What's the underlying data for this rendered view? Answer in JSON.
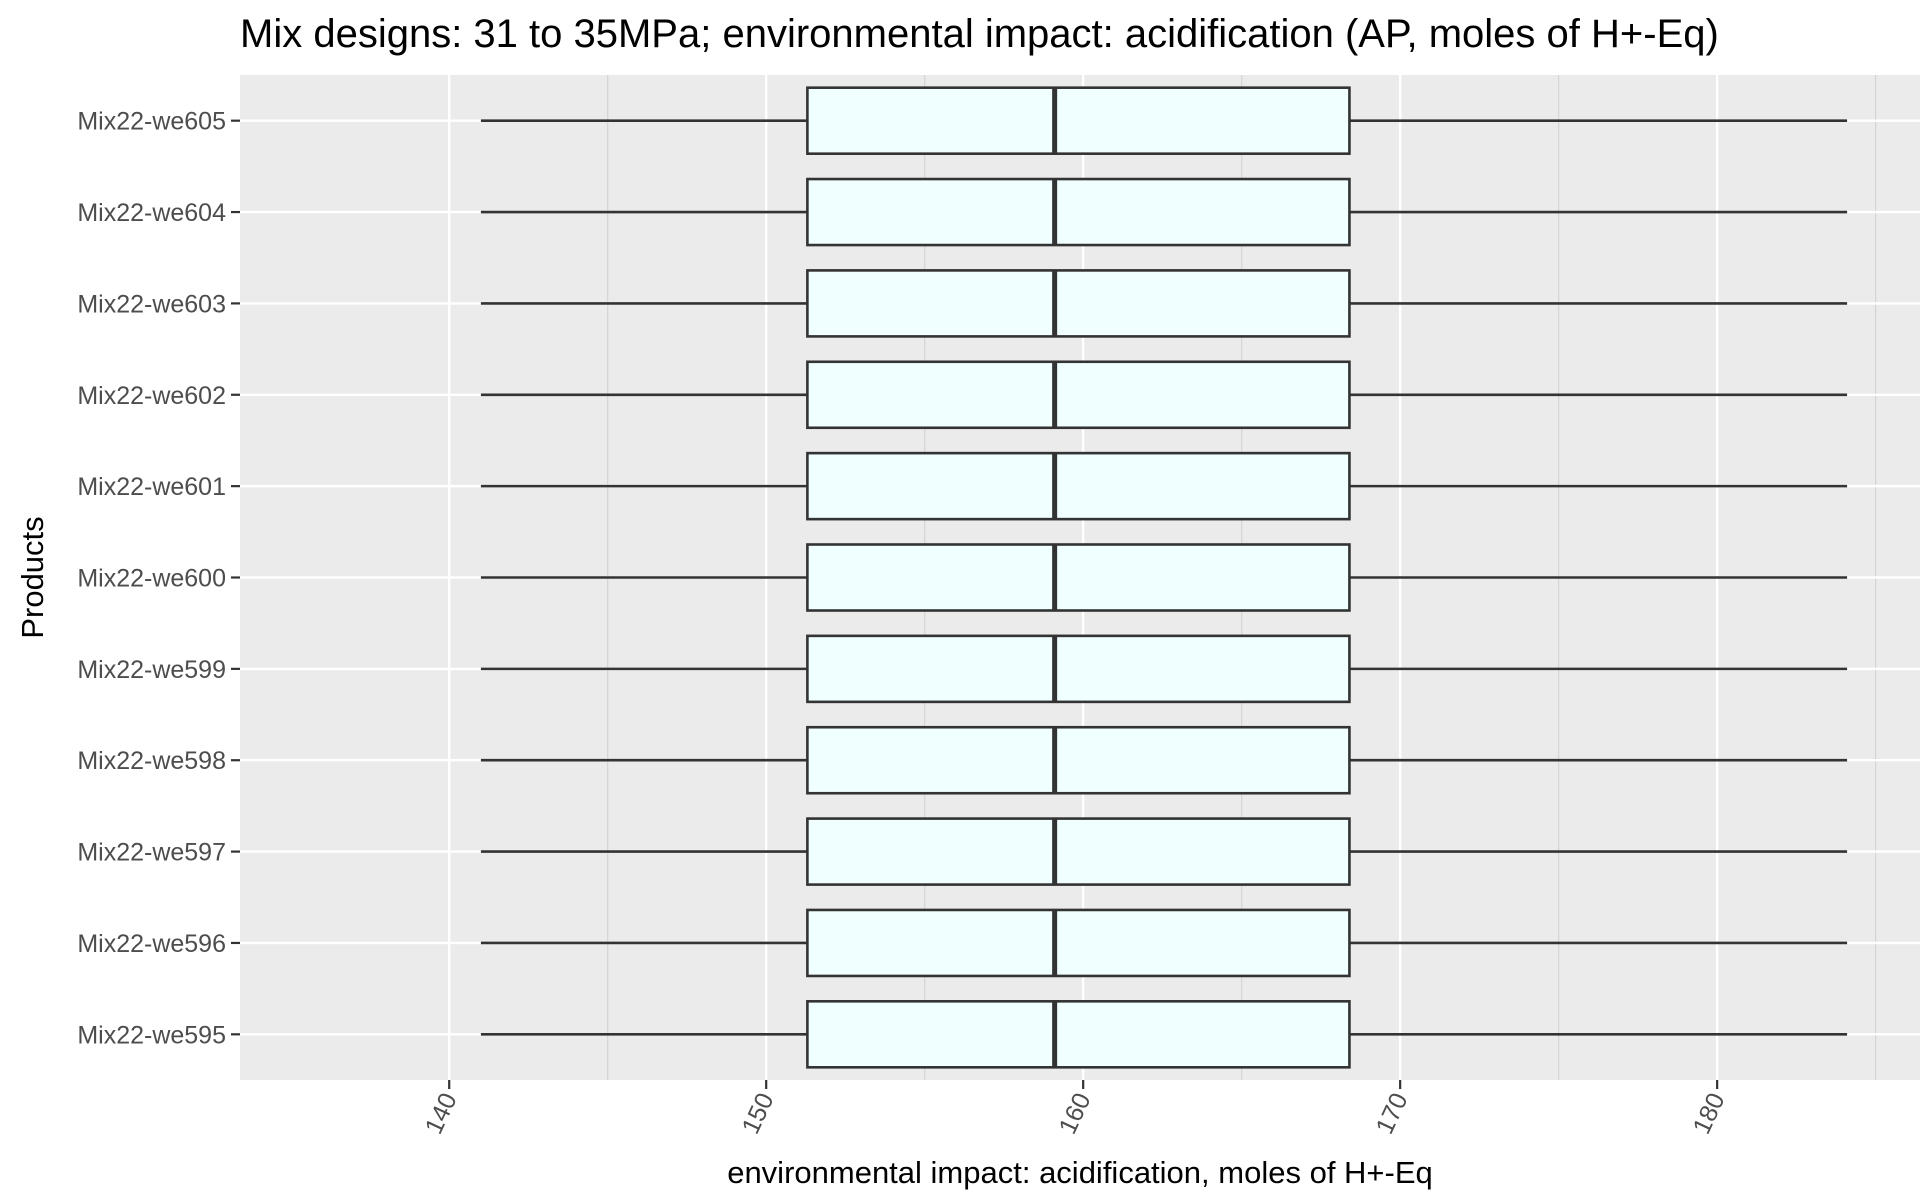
{
  "chart_data": {
    "type": "boxplot",
    "orientation": "horizontal",
    "title": "Mix designs: 31 to 35MPa; environmental impact: acidification (AP, moles of H+-Eq)",
    "xlabel": "environmental impact: acidification, moles of H+-Eq",
    "ylabel": "Products",
    "xlim": [
      133.4,
      186.4
    ],
    "x_ticks": [
      140,
      150,
      160,
      170,
      180
    ],
    "x_tick_labels": [
      "140",
      "150",
      "160",
      "170",
      "180"
    ],
    "categories": [
      "Mix22-we595",
      "Mix22-we596",
      "Mix22-we597",
      "Mix22-we598",
      "Mix22-we599",
      "Mix22-we600",
      "Mix22-we601",
      "Mix22-we602",
      "Mix22-we603",
      "Mix22-we604",
      "Mix22-we605"
    ],
    "boxes": [
      {
        "min": 141.0,
        "q1": 151.3,
        "median": 159.1,
        "q3": 168.4,
        "max": 184.1
      },
      {
        "min": 141.0,
        "q1": 151.3,
        "median": 159.1,
        "q3": 168.4,
        "max": 184.1
      },
      {
        "min": 141.0,
        "q1": 151.3,
        "median": 159.1,
        "q3": 168.4,
        "max": 184.1
      },
      {
        "min": 141.0,
        "q1": 151.3,
        "median": 159.1,
        "q3": 168.4,
        "max": 184.1
      },
      {
        "min": 141.0,
        "q1": 151.3,
        "median": 159.1,
        "q3": 168.4,
        "max": 184.1
      },
      {
        "min": 141.0,
        "q1": 151.3,
        "median": 159.1,
        "q3": 168.4,
        "max": 184.1
      },
      {
        "min": 141.0,
        "q1": 151.3,
        "median": 159.1,
        "q3": 168.4,
        "max": 184.1
      },
      {
        "min": 141.0,
        "q1": 151.3,
        "median": 159.1,
        "q3": 168.4,
        "max": 184.1
      },
      {
        "min": 141.0,
        "q1": 151.3,
        "median": 159.1,
        "q3": 168.4,
        "max": 184.1
      },
      {
        "min": 141.0,
        "q1": 151.3,
        "median": 159.1,
        "q3": 168.4,
        "max": 184.1
      },
      {
        "min": 141.0,
        "q1": 151.3,
        "median": 159.1,
        "q3": 168.4,
        "max": 184.1
      }
    ],
    "grid": true,
    "legend": "none",
    "colors": {
      "panel": "#ebebeb",
      "grid_major": "#ffffff",
      "grid_minor": "#d4d4d4",
      "box_fill": "#f0ffff",
      "box_stroke": "#333333"
    }
  }
}
